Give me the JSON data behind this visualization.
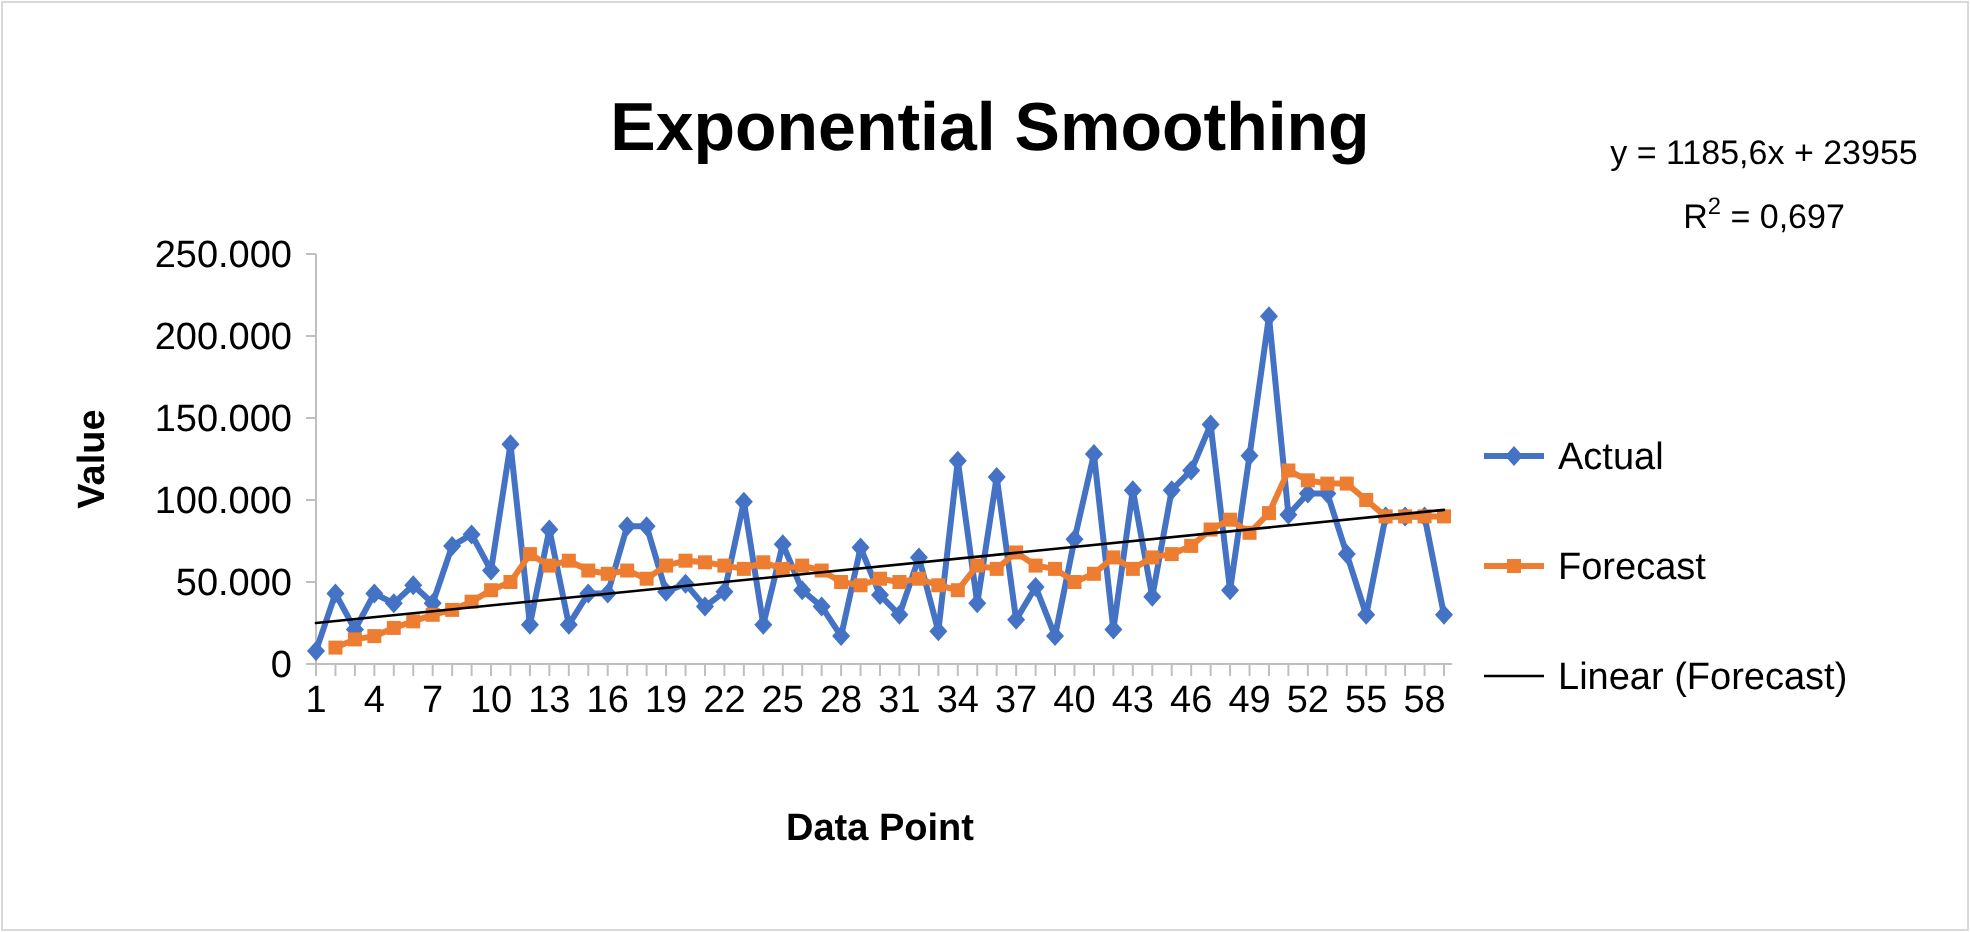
{
  "chart_data": {
    "type": "line",
    "title": "Exponential Smoothing",
    "xlabel": "Data Point",
    "ylabel": "Value",
    "categories": [
      "1",
      null,
      null,
      "4",
      null,
      null,
      "7",
      null,
      null,
      "10",
      null,
      null,
      "13",
      null,
      null,
      "16",
      null,
      null,
      "19",
      null,
      null,
      "22",
      null,
      null,
      "25",
      null,
      null,
      "28",
      null,
      null,
      "31",
      null,
      null,
      "34",
      null,
      null,
      "37",
      null,
      null,
      "40",
      null,
      null,
      "43",
      null,
      null,
      "46",
      null,
      null,
      "49",
      null,
      null,
      "52",
      null,
      null,
      "55",
      null,
      null,
      "58",
      null
    ],
    "series": [
      {
        "name": "Actual",
        "color": "#4472c4",
        "marker": "diamond",
        "values": [
          8000,
          43000,
          21000,
          43000,
          37000,
          48000,
          37000,
          72000,
          79000,
          57000,
          134000,
          24000,
          82000,
          24000,
          43000,
          43000,
          84000,
          84000,
          44000,
          49000,
          35000,
          44000,
          99000,
          24000,
          73000,
          45000,
          35000,
          17000,
          71000,
          42000,
          30000,
          65000,
          20000,
          124000,
          37000,
          114000,
          27000,
          47000,
          17000,
          76000,
          128000,
          21000,
          106000,
          41000,
          106000,
          118000,
          146000,
          45000,
          127000,
          212000,
          91000,
          104000,
          104000,
          67000,
          30000,
          90000,
          90000,
          90000,
          30000
        ]
      },
      {
        "name": "Forecast",
        "color": "#ed7d31",
        "marker": "square",
        "values": [
          null,
          10000,
          15000,
          17000,
          22000,
          26000,
          30000,
          33000,
          38000,
          45000,
          50000,
          67000,
          60000,
          63000,
          57000,
          55000,
          57000,
          52000,
          60000,
          63000,
          62000,
          60000,
          58000,
          62000,
          58000,
          60000,
          57000,
          50000,
          48000,
          52000,
          50000,
          52000,
          48000,
          45000,
          60000,
          58000,
          68000,
          60000,
          58000,
          50000,
          55000,
          65000,
          58000,
          65000,
          67000,
          72000,
          82000,
          88000,
          80000,
          92000,
          118000,
          112000,
          110000,
          110000,
          100000,
          90000,
          90000,
          90000,
          90000
        ]
      },
      {
        "name": "Linear (Forecast)",
        "type": "line",
        "color": "#000000",
        "marker": "none",
        "values": [
          25000,
          null,
          null,
          null,
          null,
          null,
          null,
          null,
          null,
          null,
          null,
          null,
          null,
          null,
          null,
          null,
          null,
          null,
          null,
          null,
          null,
          null,
          null,
          null,
          null,
          null,
          null,
          null,
          null,
          null,
          null,
          null,
          null,
          null,
          null,
          null,
          null,
          null,
          null,
          null,
          null,
          null,
          null,
          null,
          null,
          null,
          null,
          null,
          null,
          null,
          null,
          null,
          null,
          null,
          null,
          null,
          null,
          null,
          94000
        ]
      }
    ],
    "ylim": [
      0,
      250000
    ],
    "yticks": [
      {
        "value": 0,
        "label": "0"
      },
      {
        "value": 50000,
        "label": "50.000"
      },
      {
        "value": 100000,
        "label": "100.000"
      },
      {
        "value": 150000,
        "label": "150.000"
      },
      {
        "value": 200000,
        "label": "200.000"
      },
      {
        "value": 250000,
        "label": "250.000"
      }
    ],
    "annotations": [
      "y = 1185,6x + 23955",
      "R$^{2}$ = 0,697"
    ],
    "legend": "right",
    "grid": false
  }
}
